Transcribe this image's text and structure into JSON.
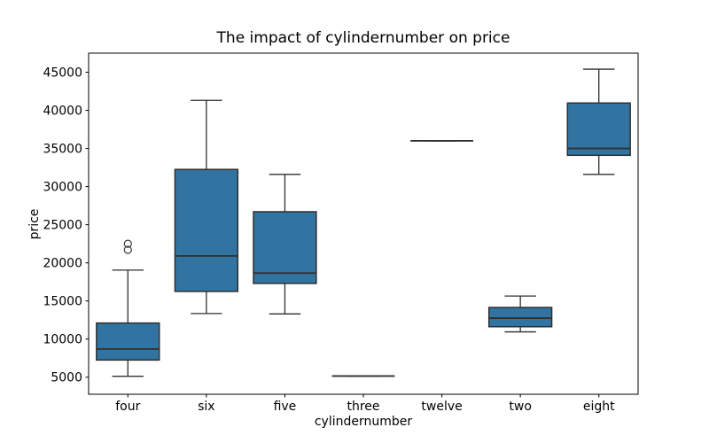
{
  "figure": {
    "title": "The impact of cylindernumber on price",
    "xlabel": "cylindernumber",
    "ylabel": "price"
  },
  "chart_data": {
    "type": "boxplot",
    "title": "The impact of cylindernumber on price",
    "xlabel": "cylindernumber",
    "ylabel": "price",
    "grid": false,
    "legend": "none",
    "categories": [
      "four",
      "six",
      "five",
      "three",
      "twelve",
      "two",
      "eight"
    ],
    "yticks": [
      5000,
      10000,
      15000,
      20000,
      25000,
      30000,
      35000,
      40000,
      45000
    ],
    "ylim": [
      2760,
      47500
    ],
    "colors": {
      "box_fill": "#3274a1",
      "box_edge": "#2f2f2f",
      "whisker": "#2f2f2f",
      "median": "#2f2f2f",
      "flier_edge": "#3a3a3a",
      "axis": "#000000"
    },
    "series": [
      {
        "category": "four",
        "whisker_low": 5118,
        "q1": 7250,
        "median": 8700,
        "q3": 12100,
        "whisker_high": 19045,
        "outliers": [
          21700,
          22500
        ]
      },
      {
        "category": "six",
        "whisker_low": 13350,
        "q1": 16250,
        "median": 20900,
        "q3": 32250,
        "whisker_high": 41315,
        "outliers": []
      },
      {
        "category": "five",
        "whisker_low": 13300,
        "q1": 17300,
        "median": 18650,
        "q3": 26700,
        "whisker_high": 31600,
        "outliers": []
      },
      {
        "category": "three",
        "whisker_low": 5151,
        "q1": 5151,
        "median": 5151,
        "q3": 5151,
        "whisker_high": 5151,
        "outliers": []
      },
      {
        "category": "twelve",
        "whisker_low": 36000,
        "q1": 36000,
        "median": 36000,
        "q3": 36000,
        "whisker_high": 36000,
        "outliers": []
      },
      {
        "category": "two",
        "whisker_low": 10945,
        "q1": 11620,
        "median": 12745,
        "q3": 14145,
        "whisker_high": 15645,
        "outliers": []
      },
      {
        "category": "eight",
        "whisker_low": 31600,
        "q1": 34100,
        "median": 35000,
        "q3": 40960,
        "whisker_high": 45400,
        "outliers": []
      }
    ]
  }
}
